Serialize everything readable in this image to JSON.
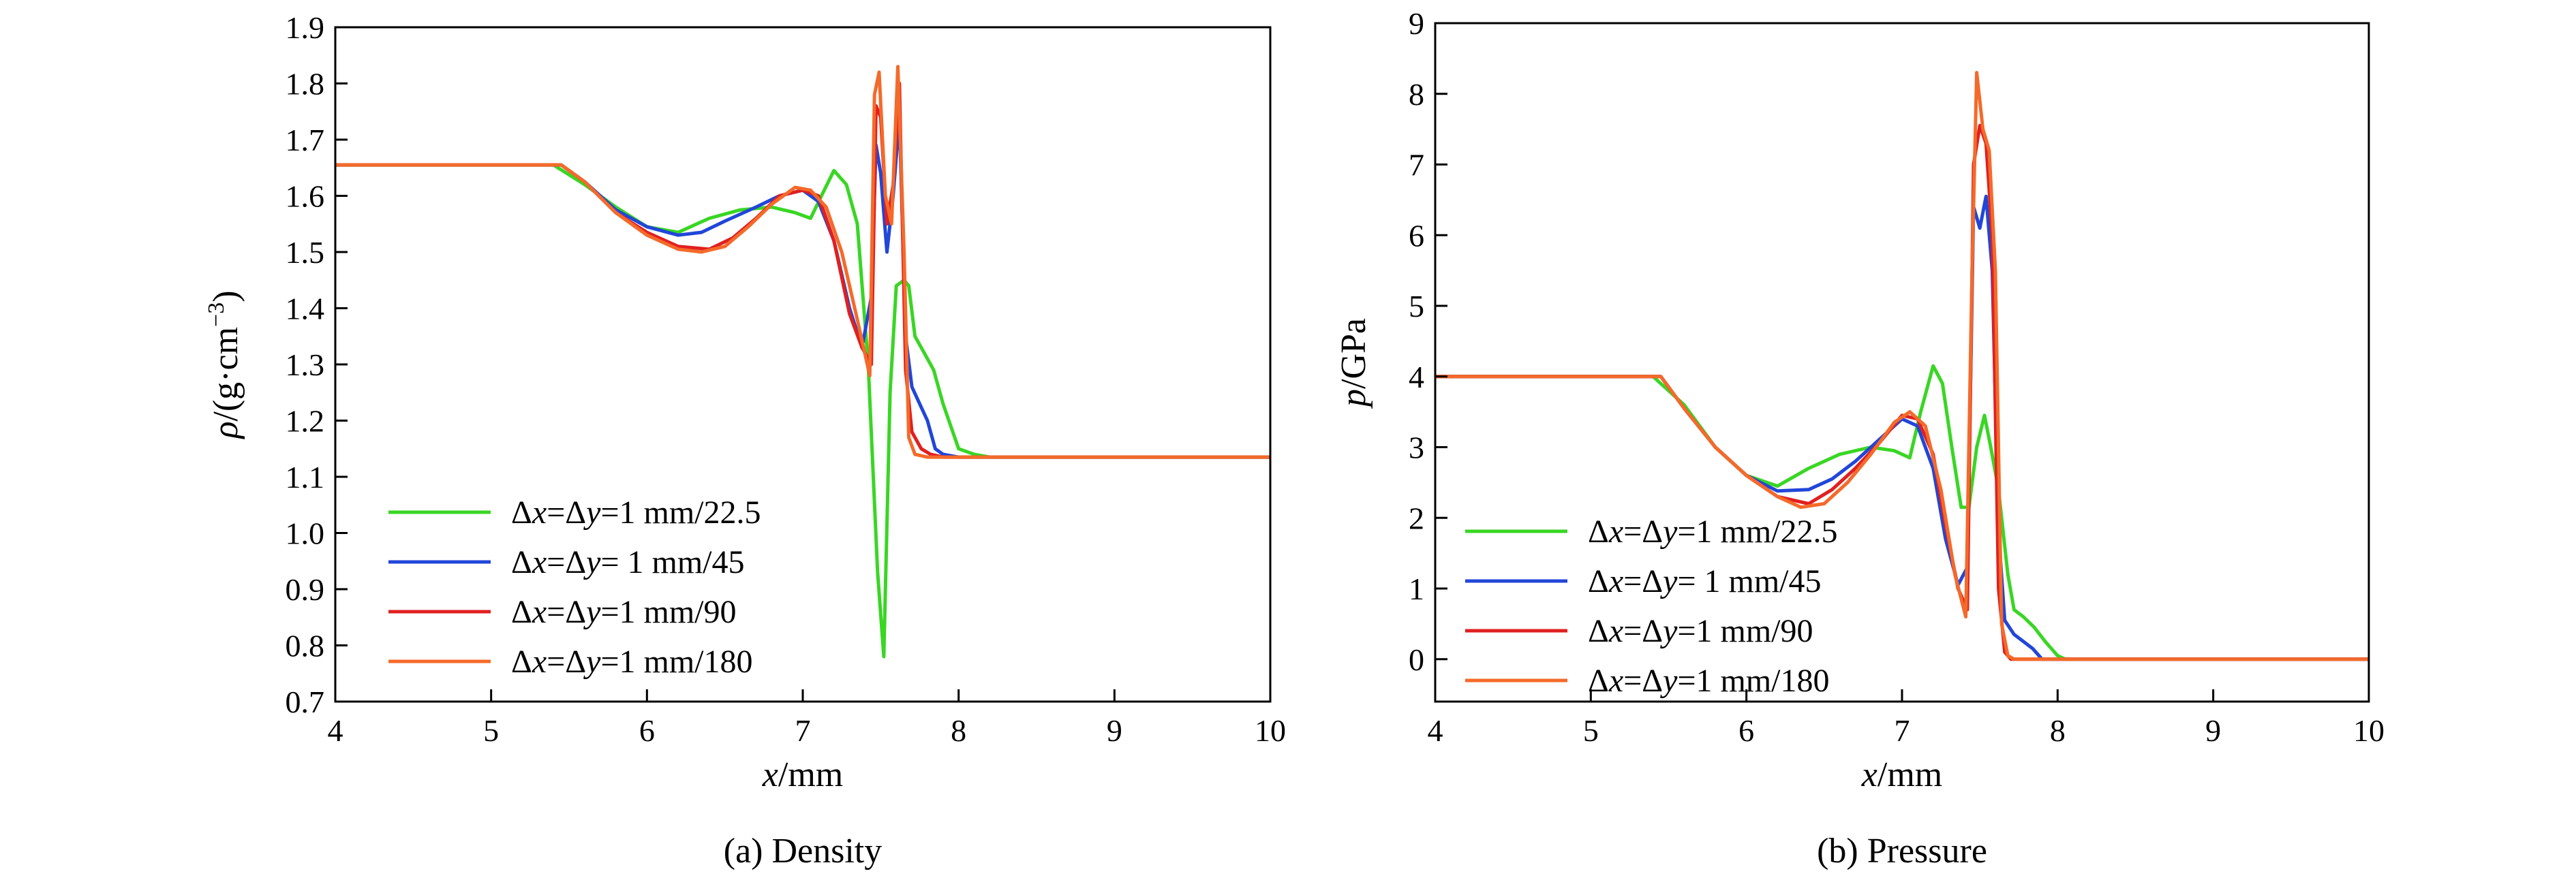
{
  "chart_data": [
    {
      "id": "a",
      "type": "line",
      "caption": "(a) Density",
      "xlabel": {
        "var": "x",
        "unit": "/mm"
      },
      "ylabel": {
        "var": "ρ",
        "unit_pre": "/(g·cm",
        "sup": "−3",
        "unit_post": ")"
      },
      "xlim": [
        4,
        10
      ],
      "ylim": [
        0.7,
        1.9
      ],
      "xticks": [
        "4",
        "5",
        "6",
        "7",
        "8",
        "9",
        "10"
      ],
      "yticks": [
        "0.7",
        "0.8",
        "0.9",
        "1.0",
        "1.1",
        "1.2",
        "1.3",
        "1.4",
        "1.5",
        "1.6",
        "1.7",
        "1.8",
        "1.9"
      ],
      "grid": false,
      "legend_position": "bottom-left",
      "series": [
        {
          "name": "Δx=Δy=1 mm/22.5",
          "color": "#39d624",
          "x": [
            4,
            5.4,
            5.6,
            5.8,
            6.0,
            6.2,
            6.4,
            6.6,
            6.8,
            6.95,
            7.05,
            7.12,
            7.2,
            7.28,
            7.35,
            7.42,
            7.48,
            7.52,
            7.56,
            7.6,
            7.65,
            7.68,
            7.72,
            7.78,
            7.84,
            7.9,
            8.0,
            8.1,
            8.2,
            10
          ],
          "y": [
            1.655,
            1.655,
            1.62,
            1.58,
            1.545,
            1.535,
            1.56,
            1.575,
            1.58,
            1.57,
            1.56,
            1.6,
            1.645,
            1.62,
            1.55,
            1.3,
            0.93,
            0.78,
            1.25,
            1.44,
            1.45,
            1.44,
            1.35,
            1.32,
            1.29,
            1.23,
            1.15,
            1.14,
            1.135,
            1.135
          ]
        },
        {
          "name": "Δx=Δy= 1 mm/45",
          "color": "#2146d8",
          "x": [
            4,
            5.45,
            5.6,
            5.8,
            6.0,
            6.2,
            6.35,
            6.5,
            6.7,
            6.85,
            7.0,
            7.1,
            7.2,
            7.3,
            7.38,
            7.44,
            7.47,
            7.5,
            7.54,
            7.58,
            7.62,
            7.66,
            7.7,
            7.75,
            7.8,
            7.85,
            7.9,
            8.0,
            10
          ],
          "y": [
            1.655,
            1.655,
            1.625,
            1.575,
            1.545,
            1.53,
            1.535,
            1.555,
            1.58,
            1.6,
            1.61,
            1.59,
            1.52,
            1.4,
            1.33,
            1.42,
            1.69,
            1.64,
            1.5,
            1.6,
            1.74,
            1.35,
            1.26,
            1.23,
            1.2,
            1.15,
            1.14,
            1.135,
            1.135
          ]
        },
        {
          "name": "Δx=Δy=1 mm/90",
          "color": "#e02020",
          "x": [
            4,
            5.45,
            5.6,
            5.8,
            6.0,
            6.2,
            6.4,
            6.55,
            6.7,
            6.85,
            7.0,
            7.1,
            7.2,
            7.3,
            7.38,
            7.44,
            7.47,
            7.5,
            7.54,
            7.58,
            7.62,
            7.66,
            7.7,
            7.76,
            7.82,
            7.9,
            10
          ],
          "y": [
            1.655,
            1.655,
            1.625,
            1.57,
            1.535,
            1.51,
            1.505,
            1.525,
            1.56,
            1.6,
            1.61,
            1.6,
            1.52,
            1.39,
            1.33,
            1.3,
            1.76,
            1.74,
            1.55,
            1.62,
            1.8,
            1.29,
            1.18,
            1.15,
            1.14,
            1.135,
            1.135
          ]
        },
        {
          "name": "Δx=Δy=1 mm/180",
          "color": "#f46a2a",
          "x": [
            4,
            5.45,
            5.6,
            5.8,
            6.0,
            6.2,
            6.35,
            6.5,
            6.65,
            6.8,
            6.95,
            7.05,
            7.15,
            7.25,
            7.35,
            7.43,
            7.46,
            7.49,
            7.53,
            7.57,
            7.61,
            7.65,
            7.68,
            7.72,
            7.8,
            10
          ],
          "y": [
            1.655,
            1.655,
            1.625,
            1.57,
            1.53,
            1.505,
            1.5,
            1.51,
            1.545,
            1.585,
            1.615,
            1.61,
            1.58,
            1.5,
            1.38,
            1.28,
            1.78,
            1.82,
            1.6,
            1.55,
            1.83,
            1.5,
            1.17,
            1.14,
            1.135,
            1.135
          ]
        }
      ]
    },
    {
      "id": "b",
      "type": "line",
      "caption": "(b) Pressure",
      "xlabel": {
        "var": "x",
        "unit": "/mm"
      },
      "ylabel": {
        "var": "p",
        "unit_pre": "/GPa",
        "sup": "",
        "unit_post": ""
      },
      "xlim": [
        4,
        10
      ],
      "ylim": [
        -0.6,
        9
      ],
      "xticks": [
        "4",
        "5",
        "6",
        "7",
        "8",
        "9",
        "10"
      ],
      "yticks": [
        "0",
        "1",
        "2",
        "3",
        "4",
        "5",
        "6",
        "7",
        "8",
        "9"
      ],
      "grid": false,
      "legend_position": "bottom-left",
      "series": [
        {
          "name": "Δx=Δy=1 mm/22.5",
          "color": "#39d624",
          "x": [
            4,
            5.4,
            5.6,
            5.8,
            6.0,
            6.2,
            6.4,
            6.6,
            6.8,
            6.95,
            7.05,
            7.12,
            7.2,
            7.26,
            7.32,
            7.38,
            7.43,
            7.48,
            7.53,
            7.57,
            7.62,
            7.68,
            7.72,
            7.78,
            7.85,
            7.92,
            8.0,
            8.05,
            10
          ],
          "y": [
            4.0,
            4.0,
            3.6,
            3.0,
            2.6,
            2.45,
            2.7,
            2.9,
            3.0,
            2.95,
            2.85,
            3.5,
            4.15,
            3.9,
            3.0,
            2.15,
            2.15,
            3.0,
            3.45,
            3.0,
            2.4,
            1.2,
            0.7,
            0.6,
            0.45,
            0.25,
            0.05,
            0.0,
            0.0
          ]
        },
        {
          "name": "Δx=Δy= 1 mm/45",
          "color": "#2146d8",
          "x": [
            4,
            5.45,
            5.6,
            5.8,
            6.0,
            6.2,
            6.4,
            6.55,
            6.7,
            6.85,
            7.0,
            7.1,
            7.2,
            7.28,
            7.36,
            7.42,
            7.46,
            7.5,
            7.54,
            7.58,
            7.62,
            7.66,
            7.72,
            7.78,
            7.84,
            7.9,
            10
          ],
          "y": [
            4.0,
            4.0,
            3.55,
            3.0,
            2.6,
            2.38,
            2.4,
            2.55,
            2.8,
            3.1,
            3.4,
            3.3,
            2.7,
            1.7,
            1.05,
            1.3,
            6.4,
            6.1,
            6.55,
            5.5,
            1.8,
            0.55,
            0.35,
            0.25,
            0.15,
            0.0,
            0.0
          ]
        },
        {
          "name": "Δx=Δy=1 mm/90",
          "color": "#e02020",
          "x": [
            4,
            5.45,
            5.6,
            5.8,
            6.0,
            6.2,
            6.4,
            6.55,
            6.7,
            6.85,
            7.0,
            7.1,
            7.2,
            7.28,
            7.36,
            7.42,
            7.46,
            7.5,
            7.54,
            7.58,
            7.62,
            7.66,
            7.7,
            7.75,
            10
          ],
          "y": [
            4.0,
            4.0,
            3.55,
            3.0,
            2.6,
            2.3,
            2.2,
            2.4,
            2.7,
            3.05,
            3.45,
            3.4,
            2.9,
            1.9,
            1.0,
            0.7,
            7.0,
            7.55,
            7.3,
            6.0,
            1.0,
            0.1,
            0.0,
            0.0,
            0.0
          ]
        },
        {
          "name": "Δx=Δy=1 mm/180",
          "color": "#f46a2a",
          "x": [
            4,
            5.45,
            5.6,
            5.8,
            6.0,
            6.2,
            6.35,
            6.5,
            6.65,
            6.8,
            6.95,
            7.05,
            7.15,
            7.25,
            7.34,
            7.41,
            7.45,
            7.48,
            7.52,
            7.56,
            7.6,
            7.64,
            7.68,
            7.72,
            10
          ],
          "y": [
            4.0,
            4.0,
            3.55,
            3.0,
            2.6,
            2.3,
            2.15,
            2.2,
            2.5,
            2.9,
            3.35,
            3.5,
            3.3,
            2.4,
            1.2,
            0.6,
            5.5,
            8.3,
            7.5,
            7.2,
            5.5,
            0.5,
            0.05,
            0.0,
            0.0
          ]
        }
      ]
    }
  ]
}
